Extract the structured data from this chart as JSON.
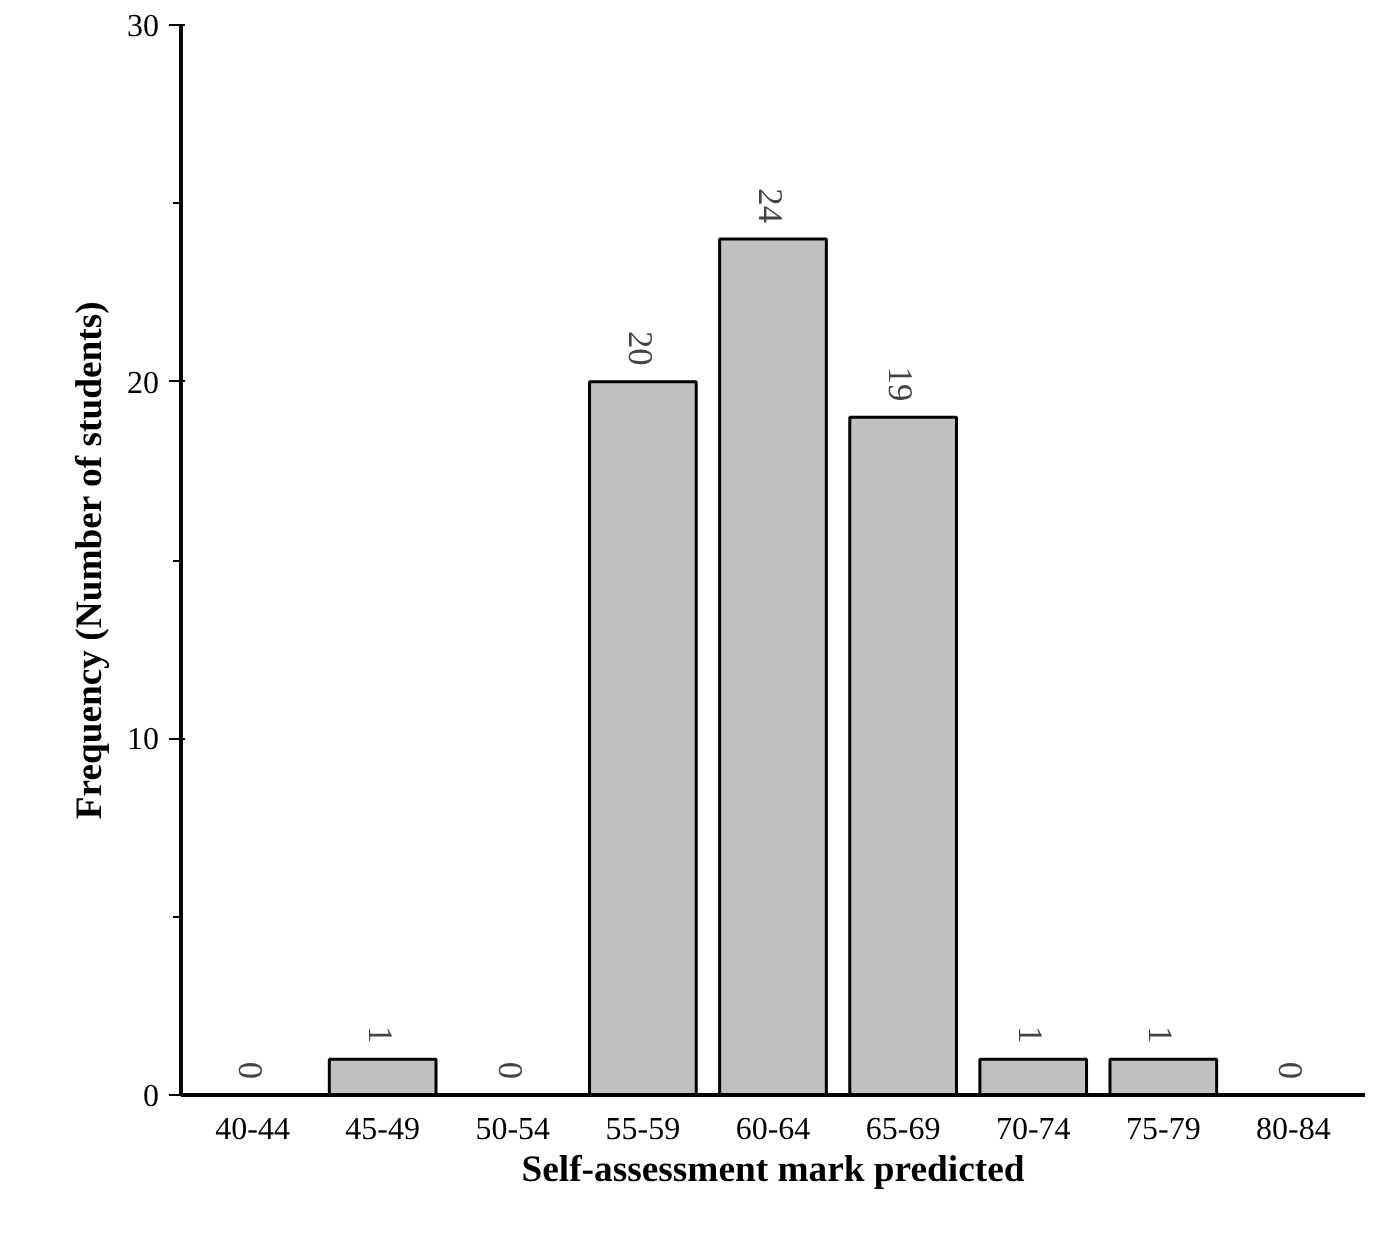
{
  "chart_data": {
    "type": "bar",
    "xlabel": "Self-assessment mark predicted",
    "ylabel": "Frequency (Number of students)",
    "categories": [
      "40-44",
      "45-49",
      "50-54",
      "55-59",
      "60-64",
      "65-69",
      "70-74",
      "75-79",
      "80-84"
    ],
    "values": [
      0,
      1,
      0,
      20,
      24,
      19,
      1,
      1,
      0
    ],
    "color": "#c0c0c0",
    "ylim": [
      0,
      30
    ],
    "yticks": [
      0,
      10,
      20,
      30
    ],
    "grid": false,
    "data_labels": true
  }
}
